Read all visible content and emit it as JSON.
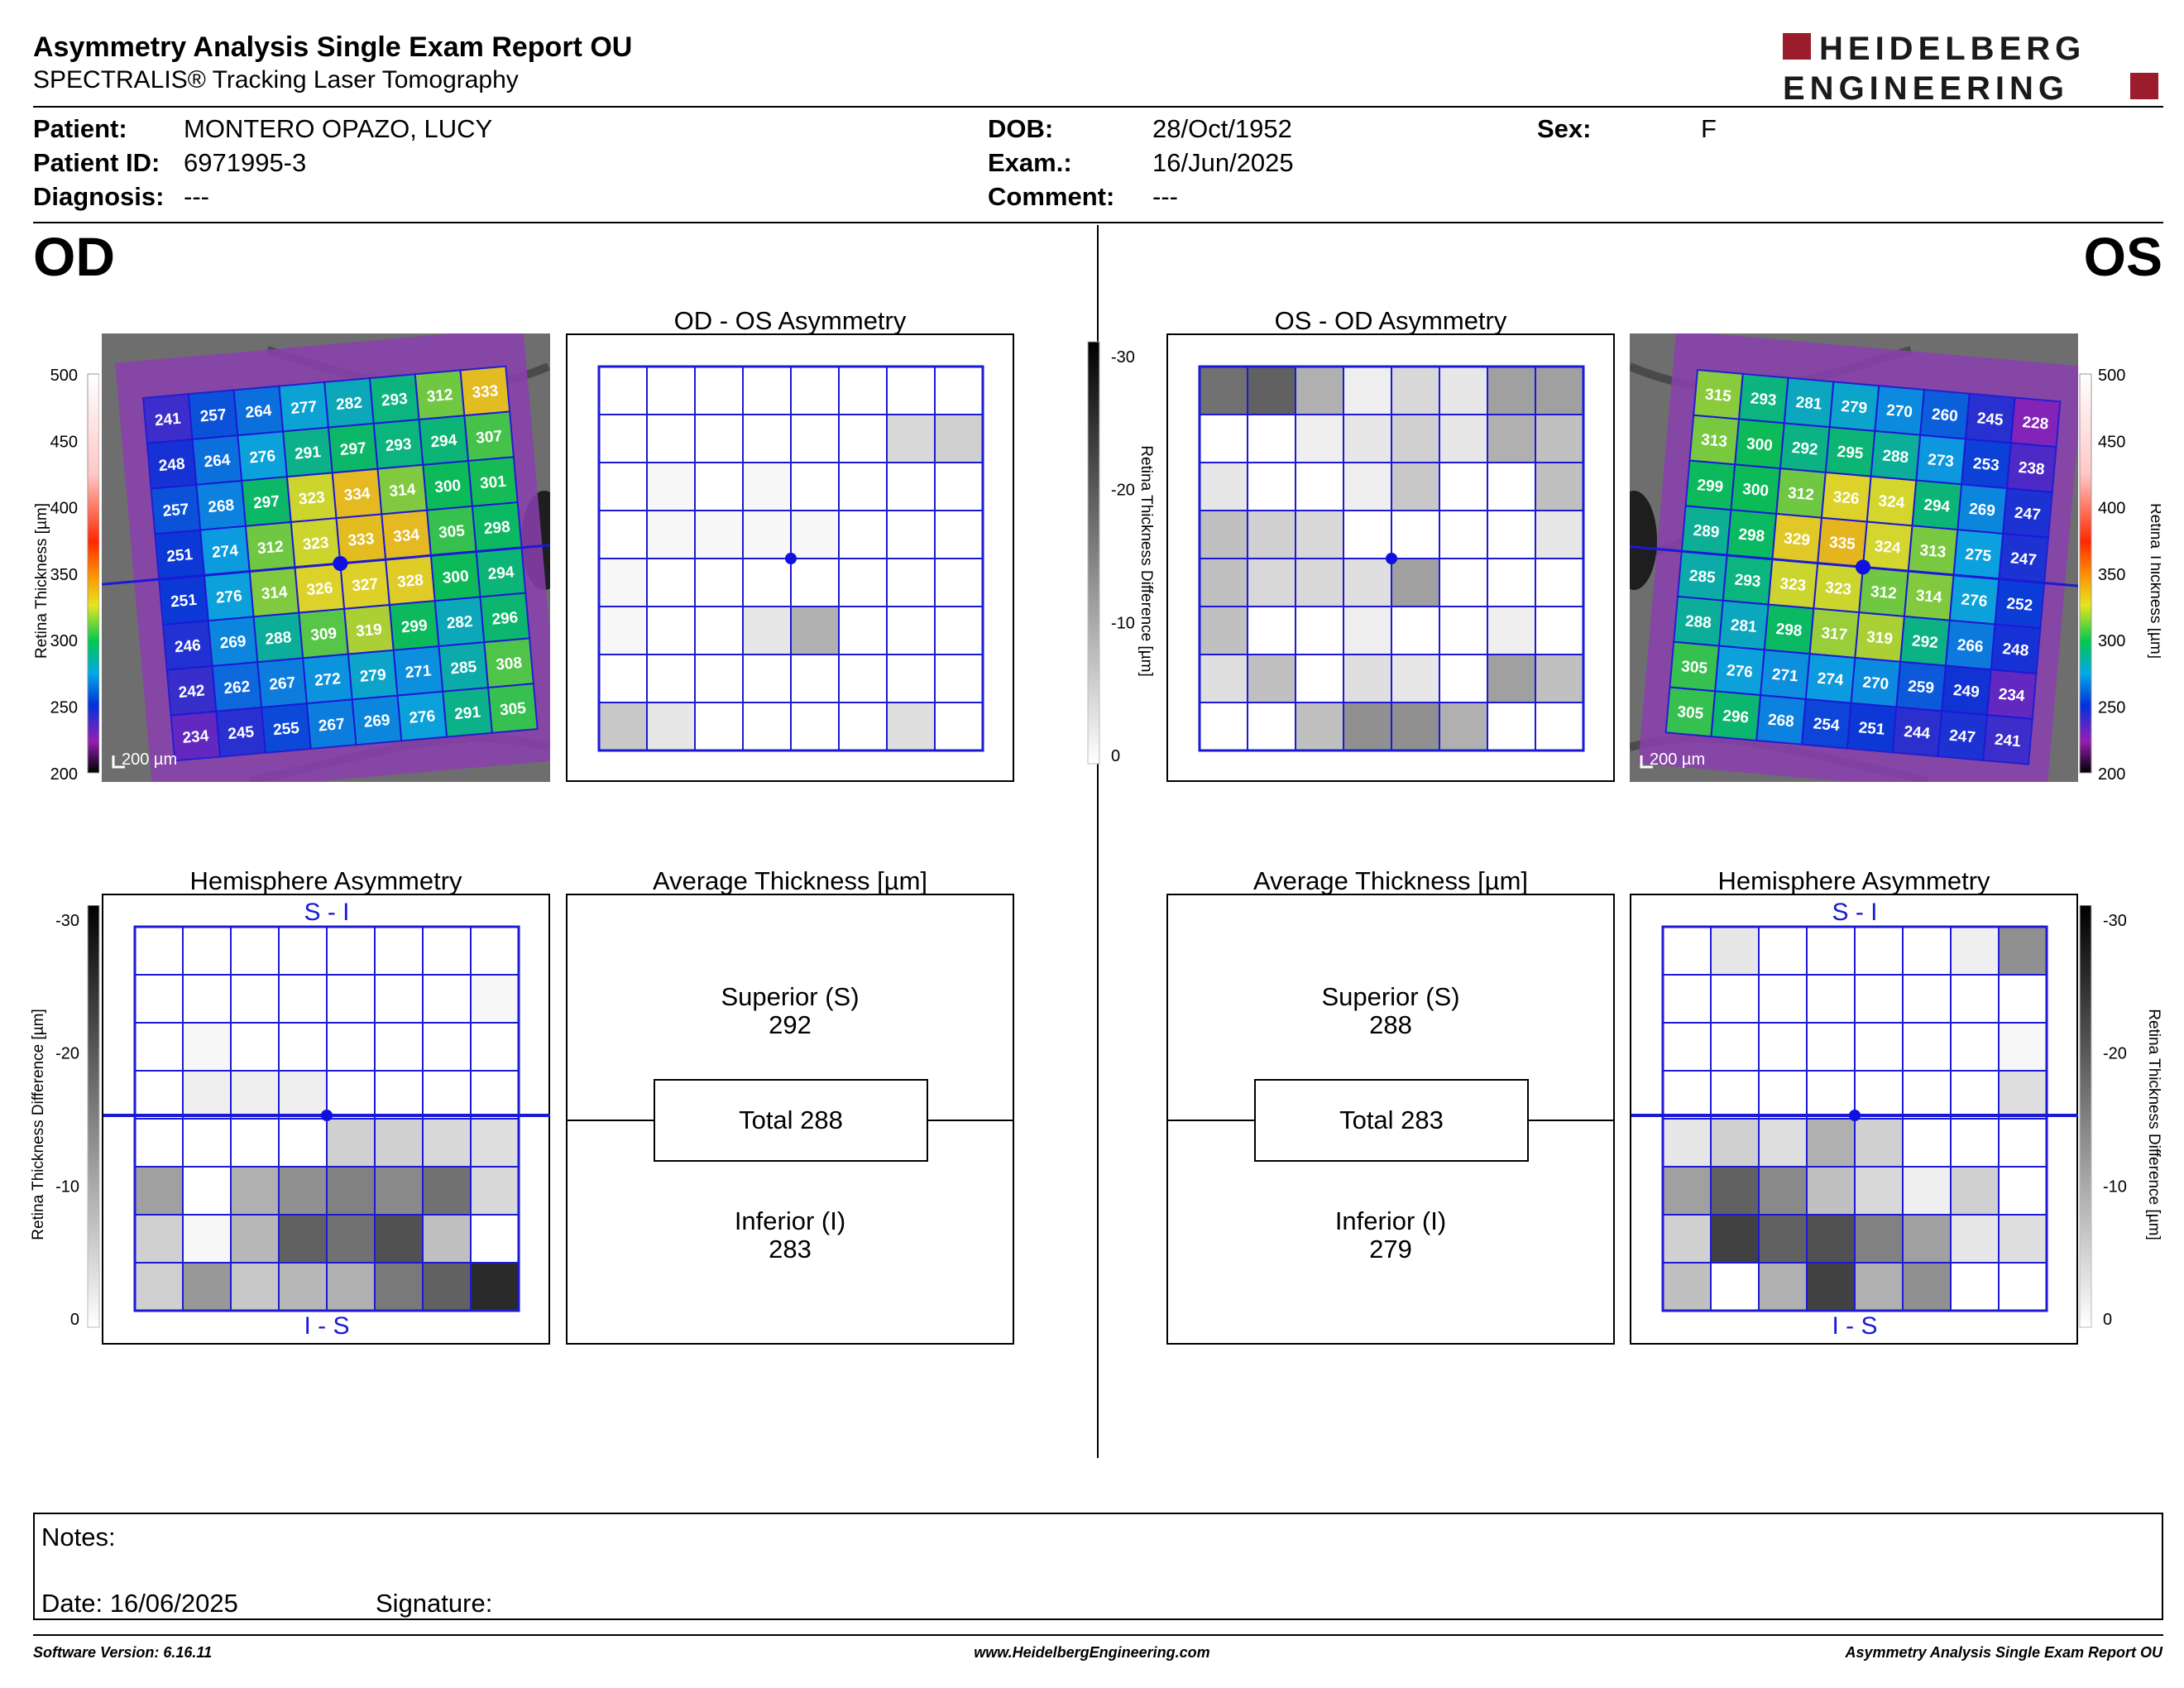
{
  "header": {
    "title": "Asymmetry Analysis Single Exam Report OU",
    "subtitle": "SPECTRALIS® Tracking Laser Tomography",
    "logo_line1": "HEIDELBERG",
    "logo_line2": "ENGINEERING",
    "logo_color": "#9b1c2c"
  },
  "patient": {
    "patient_label": "Patient:",
    "patient_value": "MONTERO OPAZO, LUCY",
    "id_label": "Patient ID:",
    "id_value": "6971995-3",
    "diagnosis_label": "Diagnosis:",
    "diagnosis_value": "---",
    "dob_label": "DOB:",
    "dob_value": "28/Oct/1952",
    "exam_label": "Exam.:",
    "exam_value": "16/Jun/2025",
    "comment_label": "Comment:",
    "comment_value": "---",
    "sex_label": "Sex:",
    "sex_value": "F"
  },
  "eyes": {
    "left": "OD",
    "right": "OS"
  },
  "thickness_scale": {
    "ticks": [
      "500",
      "450",
      "400",
      "350",
      "300",
      "250",
      "200"
    ],
    "label": "Retina  Thickness [µm]",
    "scale_bar": "200 µm"
  },
  "diff_scale": {
    "ticks": [
      "-30",
      "-20",
      "-10",
      "0"
    ],
    "label": "Retina Thickness Difference [µm]"
  },
  "od": {
    "thickness": [
      [
        "241",
        "257",
        "264",
        "277",
        "282",
        "293",
        "312",
        "333"
      ],
      [
        "248",
        "264",
        "276",
        "291",
        "297",
        "293",
        "294",
        "307"
      ],
      [
        "257",
        "268",
        "297",
        "323",
        "334",
        "314",
        "300",
        "301"
      ],
      [
        "251",
        "274",
        "312",
        "323",
        "333",
        "334",
        "305",
        "298"
      ],
      [
        "251",
        "276",
        "314",
        "326",
        "327",
        "328",
        "300",
        "294"
      ],
      [
        "246",
        "269",
        "288",
        "309",
        "319",
        "299",
        "282",
        "296"
      ],
      [
        "242",
        "262",
        "267",
        "272",
        "279",
        "271",
        "285",
        "308"
      ],
      [
        "234",
        "245",
        "255",
        "267",
        "269",
        "276",
        "291",
        "305"
      ]
    ],
    "asym_title": "OD - OS Asymmetry",
    "asym_grid": [
      [
        0,
        0,
        0,
        0,
        0,
        0,
        0,
        0
      ],
      [
        0,
        0,
        0,
        0,
        0,
        0,
        5,
        6
      ],
      [
        0,
        1,
        0,
        1,
        0,
        0,
        0,
        0
      ],
      [
        0,
        1,
        1,
        1,
        1,
        0,
        0,
        0
      ],
      [
        1,
        0,
        0,
        0,
        0,
        0,
        0,
        0
      ],
      [
        1,
        0,
        0,
        3,
        10,
        0,
        0,
        0
      ],
      [
        0,
        0,
        0,
        0,
        0,
        0,
        0,
        0
      ],
      [
        7,
        3,
        0,
        0,
        0,
        0,
        4,
        0
      ]
    ],
    "hemi_title": "Hemisphere Asymmetry",
    "hemi_top": "S - I",
    "hemi_bottom": "I - S",
    "hemi_grid": [
      [
        0,
        0,
        0,
        0,
        0,
        0,
        0,
        0
      ],
      [
        0,
        0,
        0,
        0,
        0,
        0,
        0,
        1
      ],
      [
        0,
        1,
        0,
        0,
        0,
        0,
        0,
        0
      ],
      [
        0,
        2,
        2,
        2,
        0,
        0,
        0,
        0
      ],
      [
        0,
        0,
        0,
        0,
        6,
        6,
        5,
        4
      ],
      [
        12,
        0,
        10,
        14,
        16,
        15,
        18,
        5
      ],
      [
        6,
        1,
        9,
        20,
        18,
        22,
        8,
        0
      ],
      [
        6,
        13,
        7,
        9,
        10,
        17,
        20,
        27
      ]
    ],
    "avg_title": "Average Thickness [µm]",
    "superior_label": "Superior (S)",
    "superior_value": "292",
    "total_label": "Total 288",
    "inferior_label": "Inferior (I)",
    "inferior_value": "283"
  },
  "os": {
    "thickness": [
      [
        "315",
        "293",
        "281",
        "279",
        "270",
        "260",
        "245",
        "228"
      ],
      [
        "313",
        "300",
        "292",
        "295",
        "288",
        "273",
        "253",
        "238"
      ],
      [
        "299",
        "300",
        "312",
        "326",
        "324",
        "294",
        "269",
        "247"
      ],
      [
        "289",
        "298",
        "329",
        "335",
        "324",
        "313",
        "275",
        "247"
      ],
      [
        "285",
        "293",
        "323",
        "323",
        "312",
        "314",
        "276",
        "252"
      ],
      [
        "288",
        "281",
        "298",
        "317",
        "319",
        "292",
        "266",
        "248"
      ],
      [
        "305",
        "276",
        "271",
        "274",
        "270",
        "259",
        "249",
        "234"
      ],
      [
        "305",
        "296",
        "268",
        "254",
        "251",
        "244",
        "247",
        "241"
      ]
    ],
    "asym_title": "OS - OD Asymmetry",
    "asym_grid": [
      [
        18,
        20,
        10,
        2,
        5,
        3,
        12,
        12
      ],
      [
        0,
        0,
        2,
        3,
        6,
        3,
        10,
        8
      ],
      [
        3,
        0,
        0,
        2,
        7,
        0,
        0,
        8
      ],
      [
        8,
        6,
        5,
        0,
        0,
        0,
        0,
        3
      ],
      [
        8,
        5,
        5,
        4,
        12,
        0,
        0,
        0
      ],
      [
        8,
        0,
        0,
        2,
        0,
        0,
        2,
        0
      ],
      [
        4,
        8,
        0,
        4,
        3,
        0,
        12,
        8
      ],
      [
        0,
        0,
        8,
        14,
        14,
        10,
        0,
        0
      ]
    ],
    "hemi_title": "Hemisphere Asymmetry",
    "hemi_top": "S - I",
    "hemi_bottom": "I - S",
    "hemi_grid": [
      [
        0,
        3,
        0,
        0,
        0,
        0,
        2,
        14
      ],
      [
        0,
        0,
        0,
        0,
        0,
        0,
        0,
        0
      ],
      [
        0,
        0,
        0,
        0,
        0,
        0,
        0,
        1
      ],
      [
        0,
        0,
        0,
        0,
        0,
        0,
        0,
        4
      ],
      [
        3,
        6,
        4,
        10,
        6,
        0,
        0,
        0
      ],
      [
        12,
        20,
        15,
        8,
        5,
        2,
        6,
        0
      ],
      [
        6,
        24,
        20,
        22,
        16,
        12,
        3,
        4
      ],
      [
        8,
        0,
        10,
        24,
        10,
        14,
        0,
        0
      ]
    ],
    "avg_title": "Average Thickness [µm]",
    "superior_label": "Superior (S)",
    "superior_value": "288",
    "total_label": "Total 283",
    "inferior_label": "Inferior (I)",
    "inferior_value": "279"
  },
  "notes": {
    "label": "Notes:",
    "date": "Date: 16/06/2025",
    "signature": "Signature:"
  },
  "footer": {
    "software": "Software Version: 6.16.11",
    "website": "www.HeidelbergEngineering.com",
    "report": "Asymmetry Analysis Single Exam Report OU"
  },
  "colors": {
    "grid_blue": "#1a1ad6",
    "marker_blue": "#1010e0"
  }
}
